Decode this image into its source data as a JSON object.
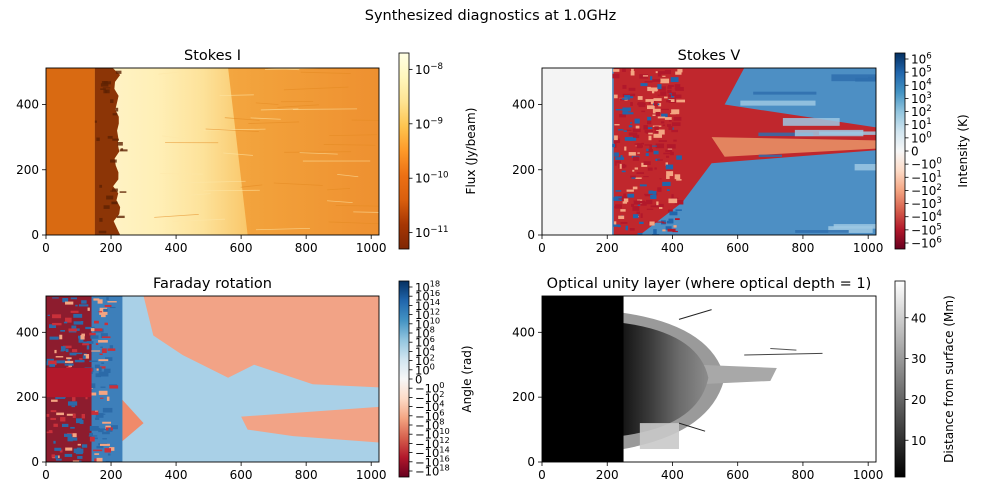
{
  "figure": {
    "suptitle": "Synthesized diagnostics at 1.0GHz"
  },
  "chart_data": [
    {
      "type": "heatmap",
      "title": "Stokes I",
      "xlim": [
        0,
        1024
      ],
      "ylim": [
        0,
        512
      ],
      "xticks": [
        0,
        200,
        400,
        600,
        800,
        1000
      ],
      "yticks": [
        0,
        200,
        400
      ],
      "colormap": "YlOrBr_r",
      "colorbar": {
        "label": "Flux (Jy/beam)",
        "scale": "log",
        "range": [
          5e-12,
          2e-08
        ],
        "ticks": [
          "10^-8",
          "10^-9",
          "10^-10",
          "10^-11"
        ],
        "colors": [
          "#7f2704",
          "#a63603",
          "#d95f0e",
          "#ec7014",
          "#fe9929",
          "#fec44f",
          "#fee391",
          "#fff7bc",
          "#ffffe5"
        ]
      },
      "regions": [
        {
          "x": [
            0,
            150
          ],
          "description_color": "#d9680f"
        },
        {
          "x": [
            150,
            230
          ],
          "description_color": "#8a3206"
        },
        {
          "x": [
            230,
            560
          ],
          "description_color": "#fff0b8"
        },
        {
          "x": [
            560,
            1024
          ],
          "description_color": "#f4a53c"
        }
      ]
    },
    {
      "type": "heatmap",
      "title": "Stokes V",
      "xlim": [
        0,
        1024
      ],
      "ylim": [
        0,
        512
      ],
      "xticks": [
        0,
        200,
        400,
        600,
        800,
        1000
      ],
      "yticks": [
        0,
        200,
        400
      ],
      "colormap": "RdBu_r",
      "colorbar": {
        "label": "Intensity (K)",
        "scale": "symlog",
        "range": [
          -1000000.0,
          1000000.0
        ],
        "ticks": [
          "10^6",
          "10^5",
          "10^4",
          "10^3",
          "10^2",
          "10^1",
          "10^0",
          "0",
          "-10^0",
          "-10^1",
          "-10^2",
          "-10^3",
          "-10^4",
          "-10^5",
          "-10^6"
        ],
        "colors": [
          "#67001f",
          "#b2182b",
          "#d6604d",
          "#f4a582",
          "#fddbc7",
          "#f7f7f7",
          "#d1e5f0",
          "#92c5de",
          "#4393c3",
          "#2166ac",
          "#053061"
        ]
      }
    },
    {
      "type": "heatmap",
      "title": "Faraday rotation",
      "xlim": [
        0,
        1024
      ],
      "ylim": [
        0,
        512
      ],
      "xticks": [
        0,
        200,
        400,
        600,
        800,
        1000
      ],
      "yticks": [
        0,
        200,
        400
      ],
      "colormap": "RdBu_r",
      "colorbar": {
        "label": "Angle (rad)",
        "scale": "symlog",
        "range": [
          -1e+18,
          1e+18
        ],
        "ticks": [
          "10^18",
          "10^16",
          "10^14",
          "10^12",
          "10^10",
          "10^8",
          "10^6",
          "10^4",
          "10^2",
          "10^0",
          "0",
          "-10^0",
          "-10^2",
          "-10^4",
          "-10^6",
          "-10^8",
          "-10^10",
          "-10^12",
          "-10^14",
          "-10^16",
          "-10^18"
        ],
        "colors": [
          "#67001f",
          "#b2182b",
          "#d6604d",
          "#f4a582",
          "#fddbc7",
          "#f7f7f7",
          "#d1e5f0",
          "#92c5de",
          "#4393c3",
          "#2166ac",
          "#053061"
        ]
      }
    },
    {
      "type": "heatmap",
      "title": "Optical unity layer (where optical depth = 1)",
      "xlim": [
        0,
        1024
      ],
      "ylim": [
        0,
        512
      ],
      "xticks": [
        0,
        200,
        400,
        600,
        800,
        1000
      ],
      "yticks": [
        0,
        200,
        400
      ],
      "colormap": "gray",
      "colorbar": {
        "label": "Distance from surface (Mm)",
        "scale": "linear",
        "range": [
          1,
          49
        ],
        "ticks": [
          "10",
          "20",
          "30",
          "40"
        ],
        "tick_values": [
          10,
          20,
          30,
          40
        ],
        "colors": [
          "#000000",
          "#ffffff"
        ]
      }
    }
  ]
}
